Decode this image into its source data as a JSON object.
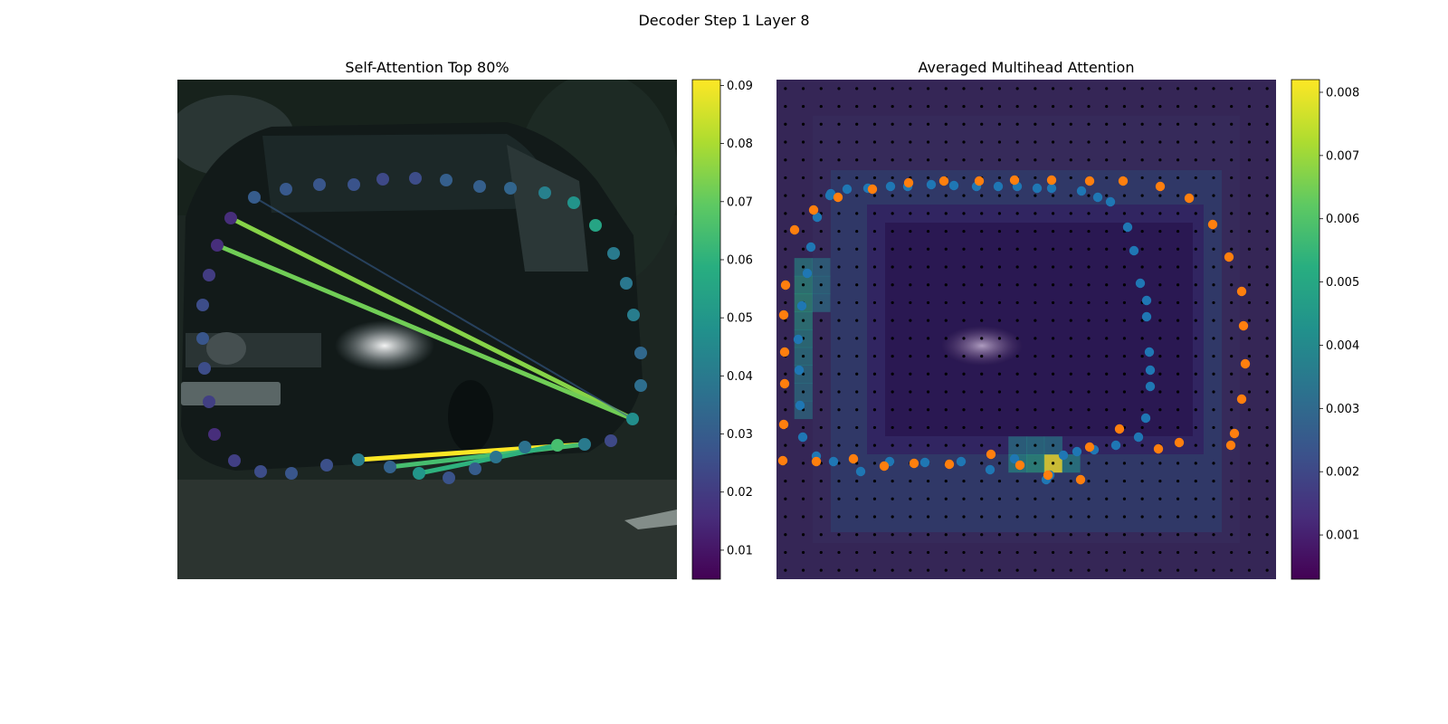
{
  "figure": {
    "suptitle": "Decoder Step 1 Layer 8"
  },
  "chart_data": [
    {
      "type": "scatter",
      "title": "Self-Attention Top 80%",
      "background": "dark street photo of a car",
      "colormap": "viridis",
      "colorbar": {
        "range": [
          0.005,
          0.091
        ],
        "ticks": [
          0.01,
          0.02,
          0.03,
          0.04,
          0.05,
          0.06,
          0.07,
          0.08,
          0.09
        ]
      },
      "points": [
        {
          "x": 85,
          "y": 130,
          "v": 0.03
        },
        {
          "x": 120,
          "y": 121,
          "v": 0.029
        },
        {
          "x": 157,
          "y": 116,
          "v": 0.028
        },
        {
          "x": 195,
          "y": 116,
          "v": 0.027
        },
        {
          "x": 227,
          "y": 110,
          "v": 0.024
        },
        {
          "x": 263,
          "y": 109,
          "v": 0.025
        },
        {
          "x": 297,
          "y": 111,
          "v": 0.031
        },
        {
          "x": 334,
          "y": 118,
          "v": 0.031
        },
        {
          "x": 368,
          "y": 120,
          "v": 0.033
        },
        {
          "x": 406,
          "y": 125,
          "v": 0.042
        },
        {
          "x": 438,
          "y": 136,
          "v": 0.049
        },
        {
          "x": 462,
          "y": 161,
          "v": 0.055
        },
        {
          "x": 482,
          "y": 192,
          "v": 0.04
        },
        {
          "x": 496,
          "y": 225,
          "v": 0.039
        },
        {
          "x": 504,
          "y": 260,
          "v": 0.041
        },
        {
          "x": 512,
          "y": 302,
          "v": 0.034
        },
        {
          "x": 512,
          "y": 338,
          "v": 0.036
        },
        {
          "x": 503,
          "y": 375,
          "v": 0.047
        },
        {
          "x": 479,
          "y": 399,
          "v": 0.024
        },
        {
          "x": 450,
          "y": 403,
          "v": 0.04
        },
        {
          "x": 420,
          "y": 404,
          "v": 0.065
        },
        {
          "x": 384,
          "y": 406,
          "v": 0.037
        },
        {
          "x": 352,
          "y": 417,
          "v": 0.038
        },
        {
          "x": 329,
          "y": 430,
          "v": 0.03
        },
        {
          "x": 300,
          "y": 440,
          "v": 0.027
        },
        {
          "x": 267,
          "y": 435,
          "v": 0.05
        },
        {
          "x": 235,
          "y": 428,
          "v": 0.032
        },
        {
          "x": 200,
          "y": 420,
          "v": 0.041
        },
        {
          "x": 165,
          "y": 426,
          "v": 0.026
        },
        {
          "x": 126,
          "y": 435,
          "v": 0.028
        },
        {
          "x": 92,
          "y": 433,
          "v": 0.025
        },
        {
          "x": 63,
          "y": 421,
          "v": 0.021
        },
        {
          "x": 41,
          "y": 392,
          "v": 0.016
        },
        {
          "x": 35,
          "y": 356,
          "v": 0.021
        },
        {
          "x": 30,
          "y": 319,
          "v": 0.025
        },
        {
          "x": 28,
          "y": 286,
          "v": 0.028
        },
        {
          "x": 28,
          "y": 249,
          "v": 0.025
        },
        {
          "x": 35,
          "y": 216,
          "v": 0.02
        },
        {
          "x": 44,
          "y": 183,
          "v": 0.016
        },
        {
          "x": 59,
          "y": 153,
          "v": 0.016
        }
      ],
      "edges": [
        {
          "from": [
            59,
            153
          ],
          "to": [
            503,
            375
          ],
          "v": 0.075
        },
        {
          "from": [
            44,
            183
          ],
          "to": [
            503,
            375
          ],
          "v": 0.072
        },
        {
          "from": [
            85,
            130
          ],
          "to": [
            503,
            375
          ],
          "v": 0.03
        },
        {
          "from": [
            200,
            420
          ],
          "to": [
            450,
            403
          ],
          "v": 0.091
        },
        {
          "from": [
            235,
            428
          ],
          "to": [
            450,
            403
          ],
          "v": 0.065
        },
        {
          "from": [
            267,
            435
          ],
          "to": [
            420,
            404
          ],
          "v": 0.06
        }
      ]
    },
    {
      "type": "heatmap",
      "title": "Averaged Multihead Attention",
      "colormap": "viridis",
      "colorbar": {
        "range": [
          0.0003,
          0.0082
        ],
        "ticks": [
          0.001,
          0.002,
          0.003,
          0.004,
          0.005,
          0.006,
          0.007,
          0.008
        ]
      },
      "grid_size": 28,
      "hotspot_cells": [
        {
          "col": 15,
          "row": 21,
          "v": 0.0082
        },
        {
          "col": 14,
          "row": 21,
          "v": 0.0052
        },
        {
          "col": 13,
          "row": 21,
          "v": 0.0046
        },
        {
          "col": 16,
          "row": 21,
          "v": 0.0044
        },
        {
          "col": 13,
          "row": 20,
          "v": 0.004
        },
        {
          "col": 14,
          "row": 20,
          "v": 0.0042
        },
        {
          "col": 15,
          "row": 20,
          "v": 0.004
        },
        {
          "col": 1,
          "row": 11,
          "v": 0.005
        },
        {
          "col": 1,
          "row": 12,
          "v": 0.0052
        },
        {
          "col": 1,
          "row": 13,
          "v": 0.0048
        },
        {
          "col": 1,
          "row": 14,
          "v": 0.0045
        },
        {
          "col": 1,
          "row": 15,
          "v": 0.0042
        },
        {
          "col": 1,
          "row": 16,
          "v": 0.004
        },
        {
          "col": 1,
          "row": 10,
          "v": 0.0044
        },
        {
          "col": 1,
          "row": 17,
          "v": 0.0038
        },
        {
          "col": 1,
          "row": 18,
          "v": 0.0036
        },
        {
          "col": 2,
          "row": 10,
          "v": 0.0036
        },
        {
          "col": 2,
          "row": 11,
          "v": 0.0038
        },
        {
          "col": 2,
          "row": 12,
          "v": 0.0036
        }
      ],
      "series": [
        {
          "color": "#1f77b4",
          "points": [
            [
              60,
              126
            ],
            [
              78,
              121
            ],
            [
              101,
              120
            ],
            [
              126,
              118
            ],
            [
              145,
              118
            ],
            [
              171,
              116
            ],
            [
              196,
              117
            ],
            [
              221,
              118
            ],
            [
              245,
              118
            ],
            [
              266,
              118
            ],
            [
              288,
              120
            ],
            [
              304,
              120
            ],
            [
              337,
              123
            ],
            [
              355,
              130
            ],
            [
              369,
              135
            ],
            [
              388,
              163
            ],
            [
              395,
              189
            ],
            [
              402,
              225
            ],
            [
              409,
              244
            ],
            [
              409,
              262
            ],
            [
              412,
              301
            ],
            [
              413,
              321
            ],
            [
              413,
              339
            ],
            [
              408,
              374
            ],
            [
              400,
              395
            ],
            [
              375,
              404
            ],
            [
              351,
              409
            ],
            [
              332,
              411
            ],
            [
              317,
              415
            ],
            [
              302,
              437
            ],
            [
              298,
              442
            ],
            [
              263,
              419
            ],
            [
              236,
              431
            ],
            [
              204,
              422
            ],
            [
              164,
              423
            ],
            [
              125,
              422
            ],
            [
              93,
              433
            ],
            [
              63,
              422
            ],
            [
              44,
              416
            ],
            [
              29,
              395
            ],
            [
              26,
              360
            ],
            [
              25,
              321
            ],
            [
              24,
              287
            ],
            [
              28,
              250
            ],
            [
              34,
              214
            ],
            [
              38,
              185
            ],
            [
              45,
              152
            ],
            [
              59,
              128
            ]
          ]
        },
        {
          "color": "#ff7f0e",
          "points": [
            [
              20,
              166
            ],
            [
              41,
              144
            ],
            [
              68,
              130
            ],
            [
              106,
              121
            ],
            [
              146,
              114
            ],
            [
              185,
              112
            ],
            [
              224,
              112
            ],
            [
              263,
              111
            ],
            [
              304,
              111
            ],
            [
              346,
              112
            ],
            [
              383,
              112
            ],
            [
              424,
              118
            ],
            [
              456,
              131
            ],
            [
              482,
              160
            ],
            [
              500,
              196
            ],
            [
              514,
              234
            ],
            [
              516,
              272
            ],
            [
              518,
              314
            ],
            [
              514,
              353
            ],
            [
              506,
              391
            ],
            [
              502,
              404
            ],
            [
              445,
              401
            ],
            [
              422,
              408
            ],
            [
              379,
              386
            ],
            [
              346,
              406
            ],
            [
              336,
              442
            ],
            [
              300,
              437
            ],
            [
              269,
              426
            ],
            [
              237,
              414
            ],
            [
              191,
              425
            ],
            [
              152,
              424
            ],
            [
              119,
              427
            ],
            [
              85,
              419
            ],
            [
              44,
              422
            ],
            [
              7,
              421
            ],
            [
              8,
              381
            ],
            [
              9,
              336
            ],
            [
              9,
              301
            ],
            [
              8,
              260
            ],
            [
              10,
              227
            ]
          ]
        }
      ]
    }
  ]
}
